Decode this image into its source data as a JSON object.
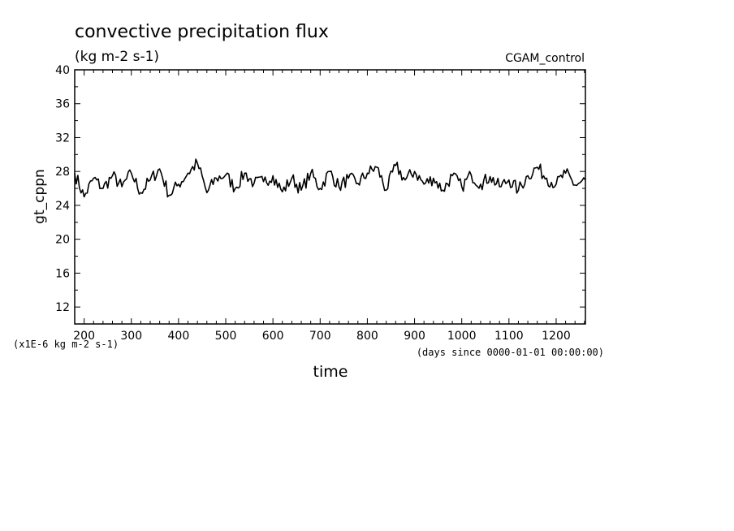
{
  "chart_data": {
    "type": "line",
    "title": "convective precipitation flux",
    "subtitle": "(kg m-2 s-1)",
    "dataset_label": "CGAM_control",
    "xlabel": "time",
    "x_units": "(days since 0000-01-01 00:00:00)",
    "ylabel": "gt_cppn",
    "y_scale_note": "(x1E-6 kg m-2 s-1)",
    "xlim": [
      180,
      1262
    ],
    "ylim": [
      10,
      40
    ],
    "x_ticks": [
      200,
      300,
      400,
      500,
      600,
      700,
      800,
      900,
      1000,
      1100,
      1200
    ],
    "y_ticks": [
      12,
      16,
      20,
      24,
      28,
      32,
      36,
      40
    ],
    "grid": false,
    "series": [
      {
        "name": "",
        "x": [
          180,
          200,
          220,
          240,
          260,
          280,
          300,
          320,
          340,
          360,
          380,
          400,
          420,
          440,
          460,
          480,
          500,
          520,
          540,
          560,
          580,
          600,
          620,
          640,
          660,
          680,
          700,
          720,
          740,
          760,
          780,
          800,
          820,
          840,
          860,
          880,
          900,
          920,
          940,
          960,
          980,
          1000,
          1020,
          1040,
          1060,
          1080,
          1100,
          1120,
          1140,
          1160,
          1180,
          1200,
          1220,
          1240,
          1262
        ],
        "values": [
          27.8,
          25.0,
          27.2,
          26.0,
          27.5,
          26.2,
          27.8,
          25.5,
          27.0,
          28.3,
          25.2,
          26.5,
          27.8,
          29.0,
          25.5,
          27.2,
          27.6,
          26.0,
          27.8,
          26.6,
          26.8,
          27.5,
          25.6,
          27.2,
          25.8,
          27.8,
          26.0,
          28.0,
          26.2,
          27.2,
          26.6,
          27.8,
          28.5,
          25.8,
          28.7,
          27.0,
          28.0,
          26.5,
          27.2,
          25.8,
          27.5,
          26.2,
          27.6,
          26.5,
          27.4,
          26.2,
          27.0,
          25.8,
          27.5,
          28.5,
          27.2,
          26.5,
          27.8,
          26.4,
          27.0
        ]
      }
    ]
  }
}
